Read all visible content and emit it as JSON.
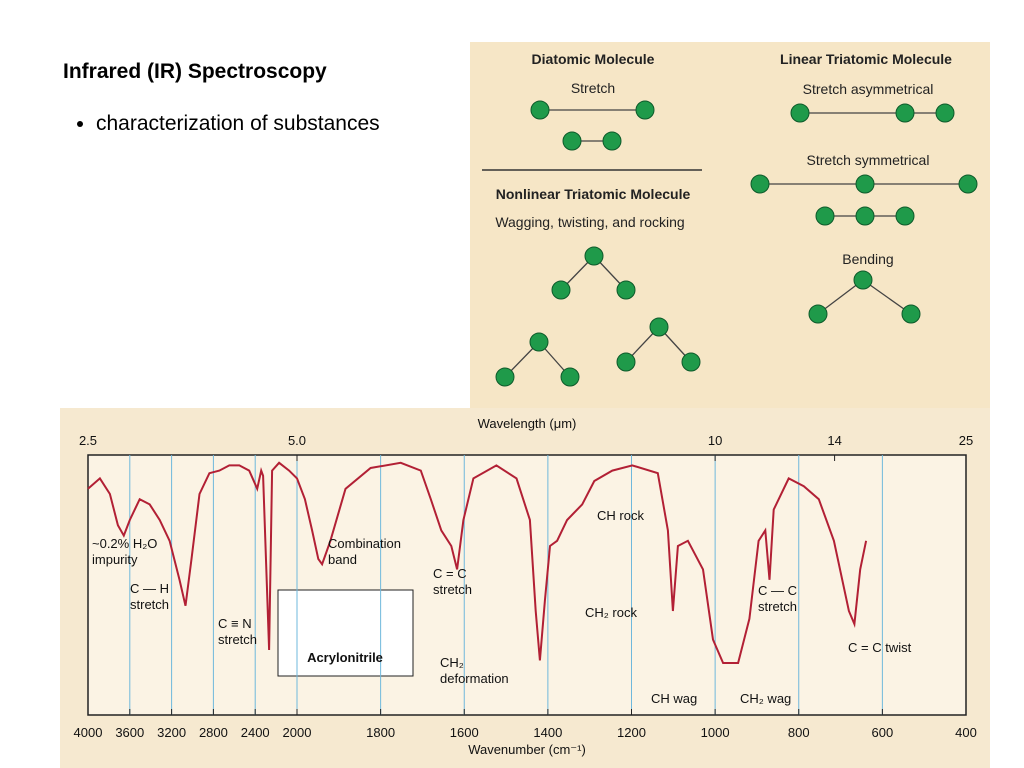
{
  "slide": {
    "title": "Infrared (IR) Spectroscopy",
    "bullets": [
      "characterization of substances"
    ]
  },
  "diagram": {
    "sections": [
      {
        "title": "Diatomic Molecule",
        "labels": [
          "Stretch"
        ]
      },
      {
        "title": "Linear Triatomic Molecule",
        "labels": [
          "Stretch asymmetrical",
          "Stretch symmetrical",
          "Bending"
        ]
      },
      {
        "title": "Nonlinear Triatomic Molecule",
        "labels": [
          "Wagging, twisting, and rocking"
        ]
      }
    ]
  },
  "chart_data": {
    "type": "line",
    "top_axis_label": "Wavelength (μm)",
    "xlabel": "Wavenumber (cm⁻¹)",
    "color": "#b22035",
    "grid": true,
    "xlim": [
      4000,
      400
    ],
    "xscale_break": 2000,
    "ylim": [
      0,
      100
    ],
    "xticks": [
      4000,
      3600,
      3200,
      2800,
      2400,
      2000,
      1800,
      1600,
      1400,
      1200,
      1000,
      800,
      600,
      400
    ],
    "top_ticks": [
      {
        "value": 2.5,
        "label": "2.5"
      },
      {
        "value": 5,
        "label": "5.0"
      },
      10,
      14,
      25
    ],
    "x": [
      4000,
      3886,
      3790,
      3714,
      3657,
      3600,
      3505,
      3410,
      3314,
      3219,
      3124,
      3067,
      3010,
      2933,
      2838,
      2743,
      2648,
      2552,
      2457,
      2381,
      2343,
      2324,
      2267,
      2238,
      2171,
      2076,
      2000,
      1981,
      1964,
      1949,
      1940,
      1920,
      1884,
      1824,
      1752,
      1704,
      1680,
      1655,
      1631,
      1617,
      1602,
      1578,
      1523,
      1475,
      1443,
      1429,
      1419,
      1407,
      1395,
      1378,
      1354,
      1318,
      1289,
      1246,
      1198,
      1137,
      1113,
      1101,
      1089,
      1065,
      1029,
      1005,
      981,
      945,
      918,
      896,
      880,
      870,
      860,
      824,
      788,
      752,
      716,
      680,
      667,
      653,
      639
    ],
    "values": [
      87,
      91,
      85,
      73,
      69,
      75,
      83,
      81,
      75,
      67,
      52,
      42,
      60,
      85,
      93,
      94,
      96,
      96,
      94,
      87,
      94,
      92,
      25,
      94,
      97,
      94,
      91,
      83,
      71,
      60,
      58,
      67,
      87,
      95,
      97,
      94,
      83,
      71,
      65,
      56,
      75,
      91,
      96,
      91,
      75,
      40,
      21,
      44,
      65,
      67,
      75,
      81,
      90,
      94,
      96,
      93,
      71,
      40,
      65,
      67,
      56,
      29,
      20,
      20,
      37,
      67,
      71,
      52,
      79,
      91,
      88,
      83,
      67,
      40,
      35,
      56,
      67
    ],
    "annotations": [
      {
        "lines": [
          "~0.2% H₂O",
          "impurity"
        ]
      },
      {
        "lines": [
          "C — H",
          "stretch"
        ]
      },
      {
        "lines": [
          "C ≡ N",
          "stretch"
        ]
      },
      {
        "lines": [
          "Combination",
          "band"
        ]
      },
      {
        "lines": [
          "C = C",
          "stretch"
        ]
      },
      {
        "lines": [
          "CH₂",
          "deformation"
        ]
      },
      {
        "lines": [
          "CH rock"
        ]
      },
      {
        "lines": [
          "CH₂ rock"
        ]
      },
      {
        "lines": [
          "CH wag"
        ]
      },
      {
        "lines": [
          "CH₂ wag"
        ]
      },
      {
        "lines": [
          "C — C",
          "stretch"
        ]
      },
      {
        "lines": [
          "C = C  twist"
        ]
      },
      {
        "lines": [
          "Acrylonitrile"
        ]
      }
    ]
  }
}
